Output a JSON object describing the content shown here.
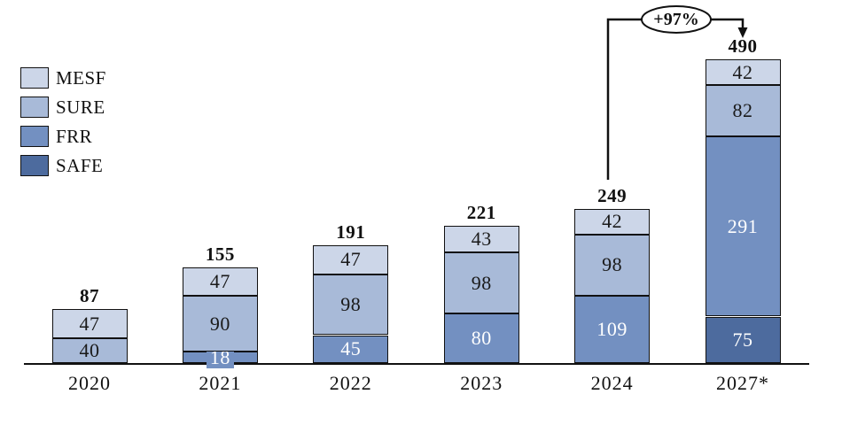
{
  "chart_data": {
    "type": "bar",
    "stacked": true,
    "title": "",
    "categories": [
      "2020",
      "2021",
      "2022",
      "2023",
      "2024",
      "2027*"
    ],
    "series": [
      {
        "name": "SAFE",
        "color": "#4d6b9e",
        "label_color": "#ffffff",
        "values": [
          0,
          0,
          0,
          0,
          0,
          75
        ]
      },
      {
        "name": "FRR",
        "color": "#7390c1",
        "label_color": "#ffffff",
        "values": [
          0,
          18,
          45,
          80,
          109,
          291
        ]
      },
      {
        "name": "SURE",
        "color": "#a8bad8",
        "label_color": "#1a1a1a",
        "values": [
          40,
          90,
          98,
          98,
          98,
          82
        ]
      },
      {
        "name": "MESF",
        "color": "#ccd6e8",
        "label_color": "#1a1a1a",
        "values": [
          47,
          47,
          47,
          43,
          42,
          42
        ]
      }
    ],
    "totals": [
      87,
      155,
      191,
      221,
      249,
      490
    ],
    "legend_order": [
      "MESF",
      "SURE",
      "FRR",
      "SAFE"
    ],
    "legend_position": "top-left",
    "grid": false,
    "annotation": {
      "label": "+97%",
      "from": "2024",
      "to": "2027*"
    },
    "border_color": "#111111"
  }
}
